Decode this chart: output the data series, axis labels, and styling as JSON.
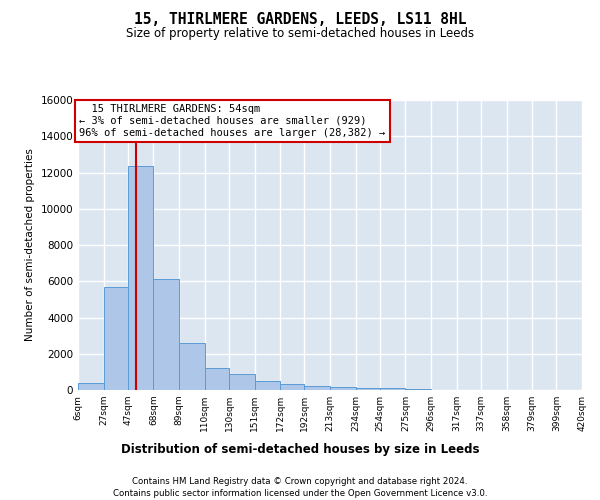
{
  "title1": "15, THIRLMERE GARDENS, LEEDS, LS11 8HL",
  "title2": "Size of property relative to semi-detached houses in Leeds",
  "xlabel": "Distribution of semi-detached houses by size in Leeds",
  "ylabel": "Number of semi-detached properties",
  "property_label": "15 THIRLMERE GARDENS: 54sqm",
  "pct_smaller": 3,
  "n_smaller": 929,
  "pct_larger": 96,
  "n_larger": 28382,
  "bin_edges": [
    6,
    27,
    47,
    68,
    89,
    110,
    130,
    151,
    172,
    192,
    213,
    234,
    254,
    275,
    296,
    317,
    337,
    358,
    379,
    399,
    420
  ],
  "bar_heights": [
    400,
    5700,
    12350,
    6150,
    2600,
    1200,
    900,
    500,
    350,
    200,
    150,
    100,
    100,
    50,
    0,
    0,
    0,
    0,
    0,
    0
  ],
  "bar_color": "#aec6e8",
  "bar_edge_color": "#5b9bd5",
  "vline_color": "#cc0000",
  "vline_x": 54,
  "annotation_box_color": "#cc0000",
  "background_color": "#dce6f1",
  "grid_color": "#ffffff",
  "ylim": [
    0,
    16000
  ],
  "yticks": [
    0,
    2000,
    4000,
    6000,
    8000,
    10000,
    12000,
    14000,
    16000
  ],
  "tick_labels": [
    "6sqm",
    "27sqm",
    "47sqm",
    "68sqm",
    "89sqm",
    "110sqm",
    "130sqm",
    "151sqm",
    "172sqm",
    "192sqm",
    "213sqm",
    "234sqm",
    "254sqm",
    "275sqm",
    "296sqm",
    "317sqm",
    "337sqm",
    "358sqm",
    "379sqm",
    "399sqm",
    "420sqm"
  ],
  "footer1": "Contains HM Land Registry data © Crown copyright and database right 2024.",
  "footer2": "Contains public sector information licensed under the Open Government Licence v3.0."
}
